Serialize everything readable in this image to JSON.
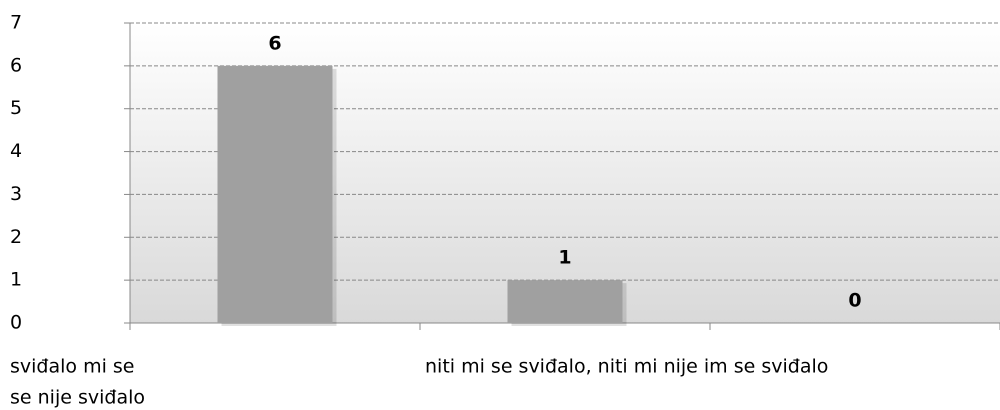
{
  "chart_data": {
    "type": "bar",
    "categories": [
      "sviđalo mi se",
      "niti mi se sviđalo, niti mi nije im se sviđalo",
      "se nije sviđalo"
    ],
    "values": [
      6,
      1,
      0
    ],
    "color": "#a0a0a0",
    "ylim": [
      0,
      7
    ],
    "yticks": [
      0,
      1,
      2,
      3,
      4,
      5,
      6,
      7
    ],
    "grid": true
  }
}
